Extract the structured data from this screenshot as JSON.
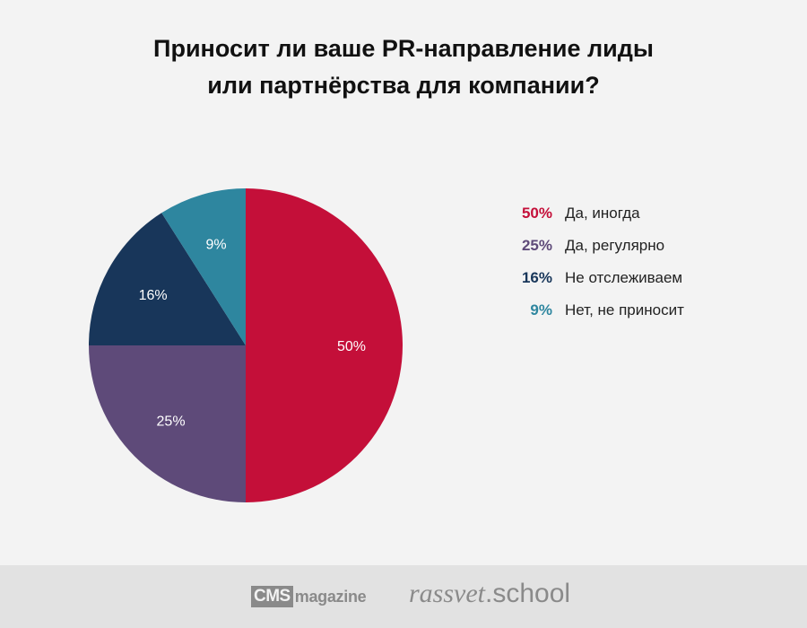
{
  "chart_data": {
    "type": "pie",
    "title_lines": [
      "Приносит ли ваше PR-направление лиды",
      "или партнёрства для компании?"
    ],
    "slices": [
      {
        "label": "Да, иногда",
        "value": 50,
        "value_text": "50%",
        "color": "#c40f39"
      },
      {
        "label": "Да, регулярно",
        "value": 25,
        "value_text": "25%",
        "color": "#5e4a79"
      },
      {
        "label": "Не отслеживаем",
        "value": 16,
        "value_text": "16%",
        "color": "#18365a"
      },
      {
        "label": "Нет, не приносит",
        "value": 9,
        "value_text": "9%",
        "color": "#2e869f"
      }
    ],
    "legend_placement": "right",
    "slice_label_color": "#ffffff",
    "direction": "clockwise-from-top"
  },
  "footer": {
    "cms_box": "CMS",
    "cms_word": "magazine",
    "rassvet_a": "rassvet",
    "rassvet_b": ".school"
  }
}
